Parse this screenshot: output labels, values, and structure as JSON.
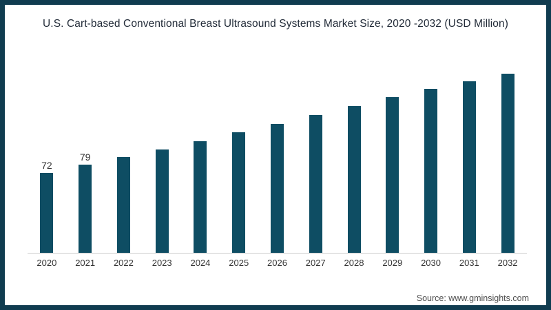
{
  "title": "U.S. Cart-based Conventional Breast Ultrasound Systems Market Size, 2020 -2032 (USD Million)",
  "source": "Source: www.gminsights.com",
  "colors": {
    "background": "#ffffff",
    "frame_border": "#103c50",
    "bar": "#0e4d63",
    "axis_line": "#cccccc",
    "title_text": "#222b38",
    "tick_text": "#333333",
    "source_text": "#4d4d4d"
  },
  "chart_data": {
    "type": "bar",
    "title": "U.S. Cart-based Conventional Breast Ultrasound Systems Market Size, 2020 -2032 (USD Million)",
    "categories": [
      "2020",
      "2021",
      "2022",
      "2023",
      "2024",
      "2025",
      "2026",
      "2027",
      "2028",
      "2029",
      "2030",
      "2031",
      "2032"
    ],
    "values": [
      72,
      79,
      86,
      93,
      100,
      108,
      116,
      124,
      132,
      140,
      147,
      154,
      161
    ],
    "value_labels": [
      "72",
      "79",
      "",
      "",
      "",
      "",
      "",
      "",
      "",
      "",
      "",
      "",
      ""
    ],
    "xlabel": "",
    "ylabel": "",
    "ylim": [
      0,
      190
    ],
    "grid": false,
    "legend": false
  }
}
